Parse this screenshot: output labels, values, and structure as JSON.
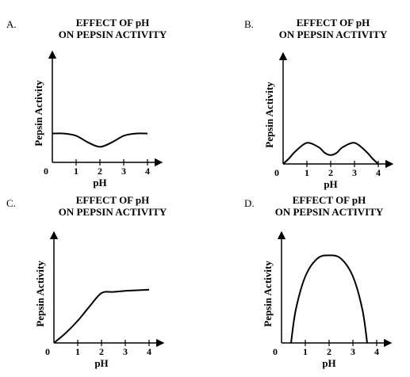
{
  "chart_data": [
    {
      "type": "line",
      "label": "A.",
      "title": [
        "EFFECT OF pH",
        "ON PEPSIN ACTIVITY"
      ],
      "xlabel": "pH",
      "ylabel": "Pepsin Activity",
      "x": [
        0,
        0.5,
        1,
        1.5,
        2,
        2.5,
        3,
        3.5,
        4
      ],
      "values": [
        2.6,
        2.6,
        2.4,
        1.8,
        1.4,
        1.8,
        2.4,
        2.6,
        2.6
      ],
      "xlim": [
        0,
        4.6
      ],
      "xticks": [
        0,
        1,
        2,
        3,
        4
      ],
      "ylim": [
        0,
        10
      ],
      "color": "#000000"
    },
    {
      "type": "line",
      "label": "B.",
      "title": [
        "EFFECT OF pH",
        "ON PEPSIN ACTIVITY"
      ],
      "xlabel": "pH",
      "ylabel": "Pepsin Activity",
      "x": [
        0,
        0.25,
        0.5,
        1,
        1.5,
        1.75,
        2,
        2.25,
        2.5,
        3,
        3.5,
        3.75,
        4
      ],
      "values": [
        0,
        0.5,
        1.1,
        1.9,
        1.5,
        1.0,
        0.8,
        1.0,
        1.5,
        1.9,
        1.1,
        0.5,
        0
      ],
      "xlim": [
        0,
        4.6
      ],
      "xticks": [
        0,
        1,
        2,
        3,
        4
      ],
      "ylim": [
        0,
        10
      ],
      "color": "#000000"
    },
    {
      "type": "line",
      "label": "C.",
      "title": [
        "EFFECT OF pH",
        "ON PEPSIN ACTIVITY"
      ],
      "xlabel": "pH",
      "ylabel": "Pepsin Activity",
      "x": [
        0,
        0.5,
        1,
        1.5,
        2,
        2.5,
        3,
        3.5,
        4
      ],
      "values": [
        0,
        0.9,
        2.0,
        3.3,
        4.5,
        4.6,
        4.7,
        4.75,
        4.8
      ],
      "xlim": [
        0,
        4.6
      ],
      "xticks": [
        0,
        1,
        2,
        3,
        4
      ],
      "ylim": [
        0,
        10
      ],
      "color": "#000000"
    },
    {
      "type": "line",
      "label": "D.",
      "title": [
        "EFFECT OF pH",
        "ON PEPSIN ACTIVITY"
      ],
      "xlabel": "pH",
      "ylabel": "Pepsin Activity",
      "x": [
        0.4,
        0.6,
        1,
        1.5,
        2,
        2.5,
        3,
        3.4,
        3.6
      ],
      "values": [
        0,
        3,
        6,
        7.6,
        7.9,
        7.6,
        6,
        3,
        0
      ],
      "xlim": [
        0,
        4.6
      ],
      "xticks": [
        0,
        1,
        2,
        3,
        4
      ],
      "ylim": [
        0,
        10
      ],
      "color": "#000000"
    }
  ]
}
